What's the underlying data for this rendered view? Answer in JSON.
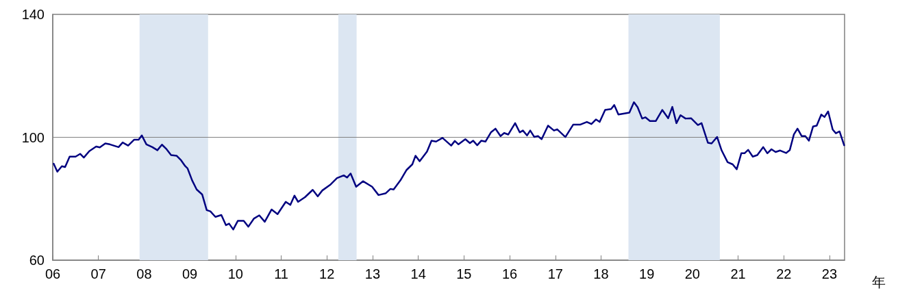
{
  "chart_data": {
    "type": "line",
    "xlabel": "年",
    "xlim": [
      2006,
      2023.33
    ],
    "xticks": [
      {
        "value": 2006,
        "label": "06"
      },
      {
        "value": 2007,
        "label": "07"
      },
      {
        "value": 2008,
        "label": "08"
      },
      {
        "value": 2009,
        "label": "09"
      },
      {
        "value": 2010,
        "label": "10"
      },
      {
        "value": 2011,
        "label": "11"
      },
      {
        "value": 2012,
        "label": "12"
      },
      {
        "value": 2013,
        "label": "13"
      },
      {
        "value": 2014,
        "label": "14"
      },
      {
        "value": 2015,
        "label": "15"
      },
      {
        "value": 2016,
        "label": "16"
      },
      {
        "value": 2017,
        "label": "17"
      },
      {
        "value": 2018,
        "label": "18"
      },
      {
        "value": 2019,
        "label": "19"
      },
      {
        "value": 2020,
        "label": "20"
      },
      {
        "value": 2021,
        "label": "21"
      },
      {
        "value": 2022,
        "label": "22"
      },
      {
        "value": 2023,
        "label": "23"
      }
    ],
    "ylim": [
      60,
      140
    ],
    "yticks": [
      60,
      100,
      140
    ],
    "grid": false,
    "marker": "none",
    "line_style": "solid",
    "ref_lines": [
      {
        "axis": "y",
        "value": 100,
        "label": null,
        "color": "#808080"
      }
    ],
    "bands": [
      {
        "axis": "x",
        "from": 2007.9,
        "to": 2009.4,
        "label": null,
        "color": "#dce6f2"
      },
      {
        "axis": "x",
        "from": 2012.25,
        "to": 2012.65,
        "label": null,
        "color": "#dce6f2"
      },
      {
        "axis": "x",
        "from": 2018.6,
        "to": 2020.6,
        "label": null,
        "color": "#dce6f2"
      }
    ],
    "series": [
      {
        "color": "#000080",
        "x": [
          2006.02,
          2006.1,
          2006.2,
          2006.27,
          2006.37,
          2006.5,
          2006.6,
          2006.68,
          2006.8,
          2006.9,
          2006.95,
          2007.03,
          2007.15,
          2007.25,
          2007.44,
          2007.53,
          2007.65,
          2007.78,
          2007.88,
          2007.95,
          2008.05,
          2008.18,
          2008.29,
          2008.39,
          2008.48,
          2008.59,
          2008.71,
          2008.81,
          2008.9,
          2008.95,
          2009.05,
          2009.15,
          2009.27,
          2009.37,
          2009.45,
          2009.56,
          2009.69,
          2009.79,
          2009.86,
          2009.95,
          2010.05,
          2010.18,
          2010.28,
          2010.4,
          2010.52,
          2010.64,
          2010.79,
          2010.92,
          2011.1,
          2011.2,
          2011.29,
          2011.37,
          2011.52,
          2011.69,
          2011.8,
          2011.9,
          2012.07,
          2012.22,
          2012.37,
          2012.44,
          2012.52,
          2012.64,
          2012.79,
          2012.99,
          2013.13,
          2013.29,
          2013.39,
          2013.46,
          2013.61,
          2013.74,
          2013.87,
          2013.94,
          2014.03,
          2014.19,
          2014.29,
          2014.39,
          2014.53,
          2014.72,
          2014.8,
          2014.88,
          2015.03,
          2015.13,
          2015.2,
          2015.29,
          2015.38,
          2015.47,
          2015.59,
          2015.69,
          2015.8,
          2015.88,
          2015.97,
          2016.12,
          2016.22,
          2016.29,
          2016.38,
          2016.45,
          2016.54,
          2016.62,
          2016.7,
          2016.84,
          2016.97,
          2017.04,
          2017.22,
          2017.39,
          2017.54,
          2017.69,
          2017.79,
          2017.89,
          2017.97,
          2018.09,
          2018.22,
          2018.29,
          2018.38,
          2018.49,
          2018.62,
          2018.72,
          2018.8,
          2018.9,
          2018.97,
          2019.07,
          2019.2,
          2019.34,
          2019.47,
          2019.56,
          2019.65,
          2019.74,
          2019.85,
          2019.97,
          2020.12,
          2020.2,
          2020.34,
          2020.42,
          2020.54,
          2020.64,
          2020.77,
          2020.88,
          2020.97,
          2021.07,
          2021.14,
          2021.22,
          2021.32,
          2021.42,
          2021.55,
          2021.64,
          2021.73,
          2021.82,
          2021.92,
          2022.05,
          2022.13,
          2022.22,
          2022.3,
          2022.39,
          2022.47,
          2022.55,
          2022.64,
          2022.72,
          2022.82,
          2022.89,
          2022.97,
          2023.07,
          2023.14,
          2023.22,
          2023.32
        ],
        "values": [
          91.4,
          88.8,
          90.6,
          90.3,
          93.7,
          93.7,
          94.6,
          93.4,
          95.5,
          96.5,
          97.0,
          96.7,
          98.0,
          97.7,
          96.8,
          98.3,
          97.3,
          99.2,
          99.2,
          100.6,
          97.7,
          96.8,
          95.8,
          97.6,
          96.3,
          94.2,
          94.0,
          92.5,
          90.6,
          89.9,
          86.0,
          83.0,
          81.4,
          76.3,
          75.9,
          74.1,
          74.7,
          71.4,
          71.9,
          70.0,
          72.8,
          72.8,
          70.9,
          73.5,
          74.6,
          72.5,
          76.5,
          75.0,
          79.0,
          78.0,
          81.0,
          79.0,
          80.5,
          82.9,
          80.8,
          82.7,
          84.5,
          86.7,
          87.6,
          86.9,
          88.2,
          83.9,
          85.7,
          83.9,
          81.2,
          81.8,
          83.2,
          83.0,
          86.0,
          89.3,
          91.2,
          94.0,
          92.2,
          95.3,
          98.9,
          98.6,
          99.8,
          97.3,
          98.8,
          97.7,
          99.4,
          98.1,
          98.9,
          97.4,
          98.9,
          98.6,
          101.6,
          102.8,
          100.4,
          101.4,
          100.9,
          104.6,
          101.6,
          102.2,
          100.6,
          102.2,
          100.1,
          100.4,
          99.4,
          103.8,
          102.2,
          102.6,
          100.1,
          104.1,
          104.1,
          105.0,
          104.3,
          105.8,
          105.0,
          108.9,
          109.2,
          110.5,
          107.4,
          107.7,
          108.0,
          111.4,
          109.8,
          106.1,
          106.5,
          105.3,
          105.3,
          108.9,
          106.2,
          109.9,
          104.6,
          107.2,
          106.1,
          106.2,
          104.0,
          104.6,
          98.2,
          98.0,
          100.1,
          95.7,
          91.9,
          91.2,
          89.6,
          94.8,
          94.8,
          95.9,
          93.7,
          94.2,
          96.8,
          94.8,
          96.1,
          95.2,
          95.7,
          94.9,
          95.8,
          100.9,
          102.8,
          100.4,
          100.4,
          98.9,
          103.5,
          103.8,
          107.4,
          106.6,
          108.4,
          102.5,
          101.3,
          101.9,
          97.4
        ]
      }
    ]
  }
}
